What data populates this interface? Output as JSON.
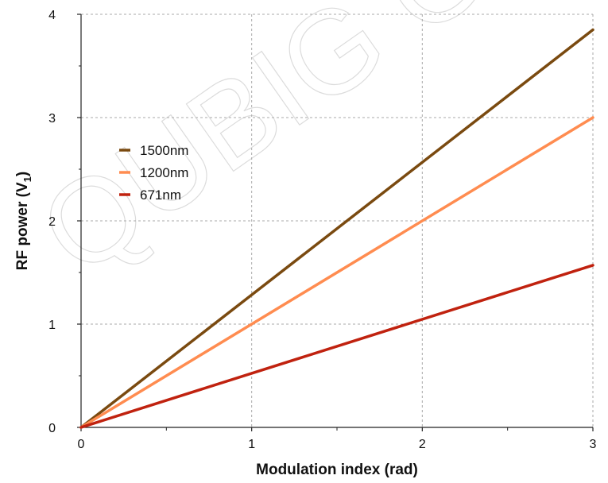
{
  "watermark": "QUBIG GmbH",
  "chart_data": {
    "type": "line",
    "title": "",
    "xlabel": "Modulation index (rad)",
    "ylabel_main": "RF power (V",
    "ylabel_sub": "1",
    "ylabel_close": ")",
    "xlim": [
      0,
      3
    ],
    "ylim": [
      0,
      4
    ],
    "x_ticks": [
      "0",
      "1",
      "2",
      "3"
    ],
    "y_ticks": [
      "0",
      "1",
      "2",
      "3",
      "4"
    ],
    "grid": true,
    "legend_position": "upper-left",
    "series": [
      {
        "name": "1500nm",
        "color": "#7a4a10",
        "x": [
          0,
          3
        ],
        "y": [
          0,
          3.85
        ]
      },
      {
        "name": "1200nm",
        "color": "#ff8c50",
        "x": [
          0,
          3
        ],
        "y": [
          0,
          3.0
        ]
      },
      {
        "name": "671nm",
        "color": "#c0220f",
        "x": [
          0,
          3
        ],
        "y": [
          0,
          1.57
        ]
      }
    ]
  }
}
